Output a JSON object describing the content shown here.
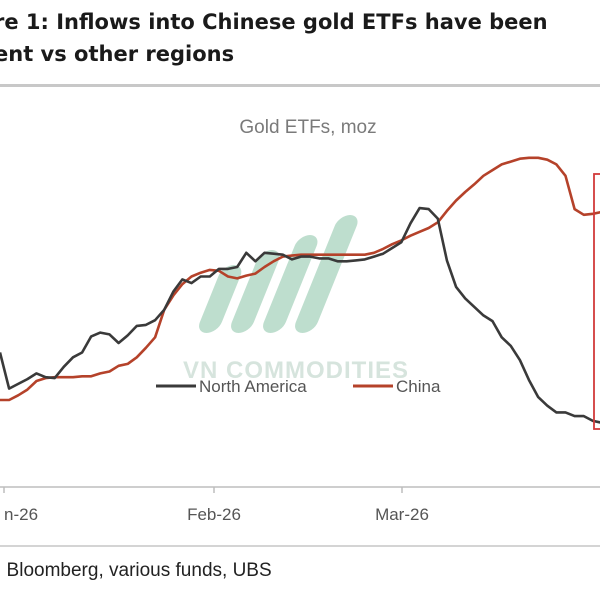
{
  "figure_title": "re 1: Inflows into Chinese gold ETFs have been\nent vs other regions",
  "source": ": Bloomberg, various funds, UBS",
  "watermark": "VN COMMODITIES",
  "colors": {
    "north_america": "#3a3a3a",
    "china": "#b5422a",
    "highlight_box": "#d23a3a",
    "axis": "#bdbdbd",
    "watermark": "#a9d3be"
  },
  "chart_data": {
    "type": "line",
    "title": "Gold ETFs, moz",
    "xlabel": "",
    "ylabel": "",
    "x_ticks": [
      "n-26",
      "Feb-26",
      "Mar-26"
    ],
    "legend_placement": "center",
    "grid": false,
    "highlight_box": true,
    "series": [
      {
        "name": "North America",
        "color": "#3a3a3a",
        "values": [
          0.5,
          0.12,
          0.17,
          0.22,
          0.28,
          0.24,
          0.23,
          0.35,
          0.45,
          0.5,
          0.67,
          0.71,
          0.69,
          0.6,
          0.68,
          0.78,
          0.79,
          0.84,
          0.95,
          1.14,
          1.27,
          1.23,
          1.3,
          1.3,
          1.38,
          1.38,
          1.4,
          1.55,
          1.46,
          1.55,
          1.54,
          1.53,
          1.48,
          1.51,
          1.51,
          1.49,
          1.49,
          1.46,
          1.46,
          1.47,
          1.48,
          1.51,
          1.54,
          1.6,
          1.66,
          1.86,
          2.02,
          2.01,
          1.91,
          1.47,
          1.19,
          1.07,
          0.98,
          0.89,
          0.83,
          0.66,
          0.57,
          0.42,
          0.21,
          0.03,
          -0.06,
          -0.13,
          -0.13,
          -0.17,
          -0.17,
          -0.22,
          -0.24
        ]
      },
      {
        "name": "China",
        "color": "#b5422a",
        "values": [
          0.0,
          0.0,
          0.05,
          0.11,
          0.2,
          0.23,
          0.24,
          0.24,
          0.24,
          0.25,
          0.25,
          0.28,
          0.3,
          0.36,
          0.38,
          0.45,
          0.55,
          0.66,
          0.95,
          1.1,
          1.22,
          1.3,
          1.34,
          1.37,
          1.36,
          1.3,
          1.28,
          1.31,
          1.33,
          1.4,
          1.46,
          1.51,
          1.52,
          1.53,
          1.53,
          1.53,
          1.53,
          1.53,
          1.53,
          1.53,
          1.53,
          1.55,
          1.59,
          1.64,
          1.68,
          1.73,
          1.77,
          1.81,
          1.87,
          1.99,
          2.1,
          2.19,
          2.27,
          2.36,
          2.42,
          2.48,
          2.51,
          2.54,
          2.55,
          2.55,
          2.53,
          2.48,
          2.36,
          2.01,
          1.95,
          1.96,
          1.98
        ]
      }
    ]
  }
}
